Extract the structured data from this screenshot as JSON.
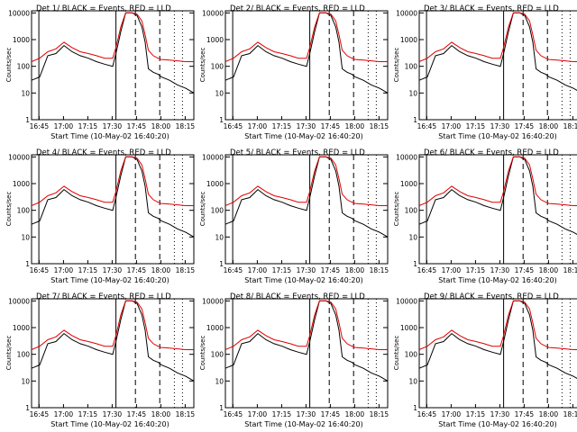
{
  "colors": {
    "events": "#000000",
    "lld": "#e00000",
    "background": "#ffffff"
  },
  "time_tick_labels": [
    "16:45",
    "17:00",
    "17:15",
    "17:30",
    "17:45",
    "18:00",
    "18:15"
  ],
  "y_tick_labels": [
    "1",
    "10",
    "100",
    "1000",
    "10000"
  ],
  "start_time_label": "Start Time (10-May-02 16:40:20)",
  "ylabel": "Counts/sec",
  "panels": [
    {
      "title": "Det 1/ BLACK = Events, RED = LLD"
    },
    {
      "title": "Det 2/ BLACK = Events, RED = LLD"
    },
    {
      "title": "Det 3/ BLACK = Events, RED = LLD"
    },
    {
      "title": "Det 4/ BLACK = Events, RED = LLD"
    },
    {
      "title": "Det 5/ BLACK = Events, RED = LLD"
    },
    {
      "title": "Det 6/ BLACK = Events, RED = LLD"
    },
    {
      "title": "Det 7/ BLACK = Events, RED = LLD"
    },
    {
      "title": "Det 8/ BLACK = Events, RED = LLD"
    },
    {
      "title": "Det 9/ BLACK = Events, RED = LLD"
    }
  ],
  "chart_data": {
    "type": "line",
    "grid": false,
    "y_scale": "log",
    "ylim": [
      1,
      12000
    ],
    "xlim_minutes_after_16_40_20": [
      0,
      100
    ],
    "x_unit": "minutes after 16:40:20",
    "series": [
      {
        "name": "Events",
        "color": "#000000",
        "x": [
          0,
          5,
          10,
          15,
          20,
          25,
          30,
          35,
          40,
          45,
          50,
          52,
          55,
          58,
          60,
          62,
          65,
          68,
          70,
          72,
          75,
          78,
          80,
          85,
          90,
          95,
          100
        ],
        "y": [
          30,
          40,
          250,
          300,
          600,
          350,
          250,
          200,
          150,
          120,
          100,
          300,
          2000,
          10000,
          10000,
          10000,
          8000,
          3000,
          800,
          80,
          60,
          50,
          40,
          30,
          20,
          15,
          10
        ]
      },
      {
        "name": "LLD",
        "color": "#e00000",
        "x": [
          0,
          5,
          10,
          15,
          20,
          25,
          30,
          35,
          40,
          45,
          50,
          52,
          55,
          58,
          60,
          62,
          65,
          68,
          70,
          72,
          75,
          78,
          80,
          85,
          90,
          95,
          100
        ],
        "y": [
          150,
          200,
          350,
          450,
          800,
          500,
          350,
          300,
          250,
          200,
          200,
          500,
          3000,
          10000,
          10000,
          10000,
          9000,
          5000,
          1500,
          400,
          250,
          200,
          180,
          170,
          160,
          150,
          150
        ]
      }
    ],
    "markers": {
      "solid_minutes": [
        4.5,
        52
      ],
      "dashed_minutes": [
        64,
        79
      ],
      "dotted_minutes": [
        88,
        93
      ]
    }
  }
}
